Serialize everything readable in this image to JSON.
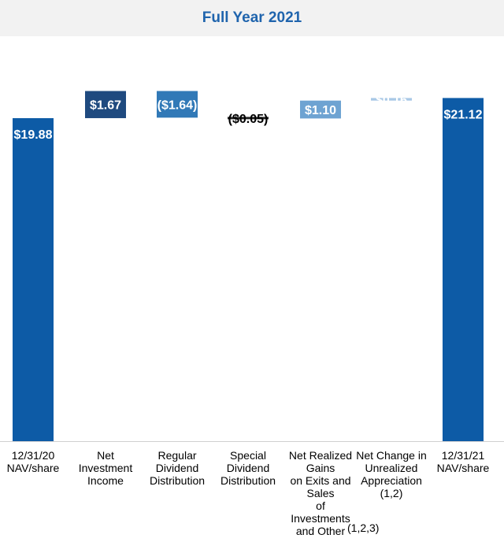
{
  "chart_data": {
    "type": "bar",
    "subtype": "waterfall",
    "title": "Full Year 2021",
    "xlabel": "",
    "ylabel": "",
    "ylim": [
      0,
      25
    ],
    "grid": false,
    "legend": "none",
    "categories": [
      "12/31/20\nNAV/share",
      "Net\nInvestment\nIncome",
      "Regular\nDividend\nDistribution",
      "Special\nDividend\nDistribution",
      "Net Realized\nGains\non Exits and\nSales\nof\nInvestments\nand Other",
      "Net Change in\nUnrealized\nAppreciation\n(1,2)",
      "12/31/21\nNAV/share"
    ],
    "category_notes": [
      "",
      "",
      "",
      "",
      "(1,2,3)",
      "",
      ""
    ],
    "values": [
      19.88,
      1.67,
      -1.64,
      -0.05,
      1.1,
      0.16,
      21.12
    ],
    "value_labels": [
      "$19.88",
      "$1.67",
      "($1.64)",
      "($0.05)",
      "$1.10",
      "$0.16",
      "$21.12"
    ],
    "measure": [
      "absolute",
      "relative",
      "relative",
      "relative",
      "relative",
      "relative",
      "total"
    ],
    "colors": [
      "#0d5ba6",
      "#1f4a7f",
      "#3179b7",
      "#3179b7",
      "#6ea3d2",
      "#a8c8e6",
      "#0d5ba6"
    ],
    "label_colors": [
      "#ffffff",
      "#ffffff",
      "#ffffff",
      "#000000",
      "#ffffff",
      "#ffffff",
      "#ffffff"
    ]
  }
}
